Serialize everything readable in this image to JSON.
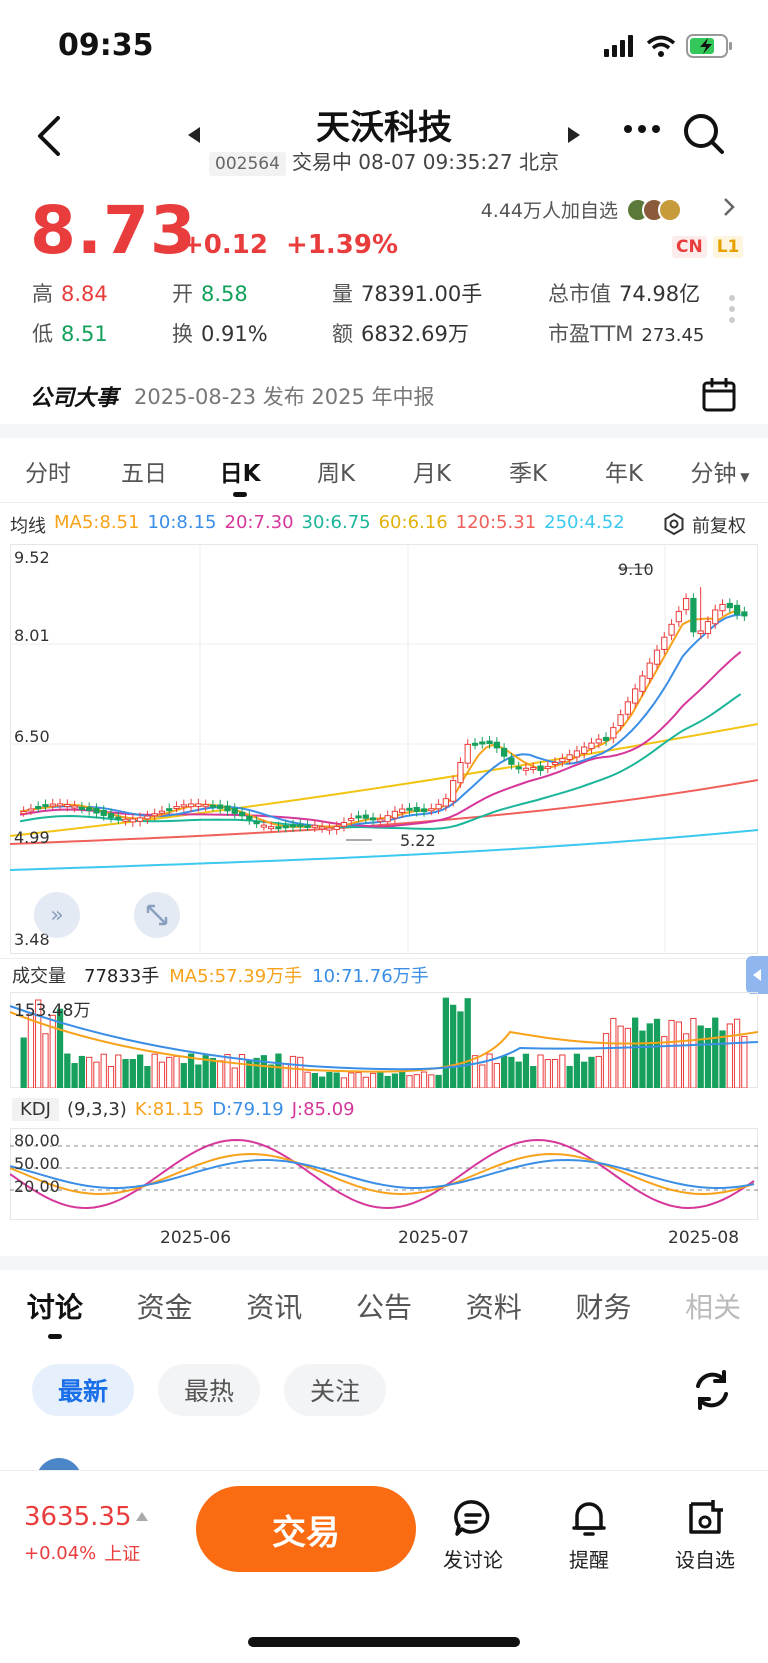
{
  "status": {
    "time": "09:35"
  },
  "header": {
    "name": "天沃科技",
    "code": "002564",
    "status_text": "交易中 08-07 09:35:27 北京"
  },
  "quote": {
    "price": "8.73",
    "change": "+0.12",
    "change_pct": "+1.39%",
    "favorites": "4.44万人加自选",
    "badge_cn": "CN",
    "badge_l1": "L1",
    "high_label": "高",
    "high": "8.84",
    "open_label": "开",
    "open": "8.58",
    "volume_label": "量",
    "volume": "78391.00手",
    "mcap_label": "总市值",
    "mcap": "74.98亿",
    "low_label": "低",
    "low": "8.51",
    "turnover_label": "换",
    "turnover": "0.91%",
    "amount_label": "额",
    "amount": "6832.69万",
    "pe_label": "市盈TTM",
    "pe": "273.45"
  },
  "event": {
    "label": "公司大事",
    "text": "2025-08-23 发布 2025 年中报"
  },
  "period_tabs": [
    "分时",
    "五日",
    "日K",
    "周K",
    "月K",
    "季K",
    "年K",
    "分钟"
  ],
  "ma_legend": {
    "title": "均线",
    "items": [
      {
        "text": "MA5:8.51",
        "color": "#f7a21b"
      },
      {
        "text": "10:8.15",
        "color": "#3a8ee6"
      },
      {
        "text": "20:7.30",
        "color": "#d6379b"
      },
      {
        "text": "30:6.75",
        "color": "#1bb59a"
      },
      {
        "text": "60:6.16",
        "color": "#f2c414"
      },
      {
        "text": "120:5.31",
        "color": "#f0605a"
      },
      {
        "text": "250:4.52",
        "color": "#3cc9ef"
      }
    ],
    "adjust": "前复权"
  },
  "chart_data": [
    {
      "type": "candlestick",
      "title": "日K",
      "y_ticks": [
        "9.52",
        "8.01",
        "6.50",
        "4.99",
        "3.48"
      ],
      "ylim": [
        3.48,
        9.52
      ],
      "annotations": [
        {
          "text": "9.10",
          "kind": "high"
        },
        {
          "text": "5.22",
          "kind": "low"
        }
      ],
      "x_ticks": [
        "2025-06",
        "2025-07",
        "2025-08"
      ]
    },
    {
      "type": "bar",
      "title": "成交量",
      "latest": "77833手",
      "ma5": "MA5:57.39万手",
      "ma10": "10:71.76万手",
      "max_label": "153.48万"
    },
    {
      "type": "line",
      "title": "KDJ",
      "params": "(9,3,3)",
      "k": "K:81.15",
      "d": "D:79.19",
      "j": "J:85.09",
      "y_ticks": [
        "80.00",
        "50.00",
        "20.00"
      ]
    }
  ],
  "content_tabs": [
    "讨论",
    "资金",
    "资讯",
    "公告",
    "资料",
    "财务",
    "相关"
  ],
  "filters": [
    "最新",
    "最热",
    "关注"
  ],
  "bottom": {
    "index_value": "3635.35",
    "index_change": "+0.04%",
    "index_name": "上证",
    "trade": "交易",
    "post": "发讨论",
    "remind": "提醒",
    "watch": "设自选"
  }
}
